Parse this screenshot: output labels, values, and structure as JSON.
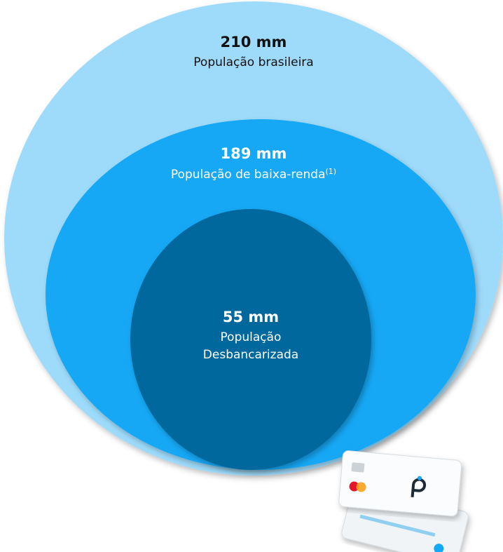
{
  "circles": [
    {
      "value": "210 mm",
      "label": "População brasileira"
    },
    {
      "value": "189 mm",
      "label": "População de baixa-renda",
      "note": "(1)"
    },
    {
      "value": "55 mm",
      "label_lines": [
        "População",
        "Desbancarizada"
      ]
    }
  ]
}
